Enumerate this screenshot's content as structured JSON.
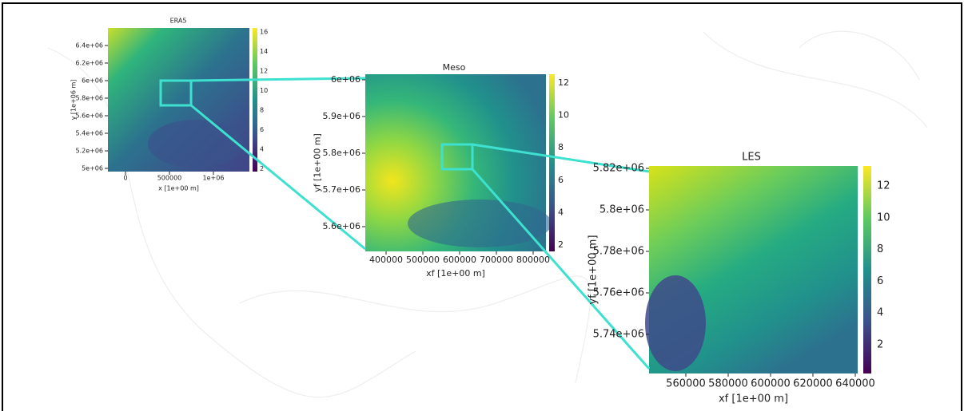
{
  "panels": [
    {
      "title": "ERA5",
      "xlabel": "x [1e+00 m]",
      "ylabel": "y [1e+06 m]",
      "xticks": [
        "0",
        "500000",
        "1e+06"
      ],
      "yticks": [
        "6.4e+06",
        "6.2e+06",
        "6e+06",
        "5.8e+06",
        "5.6e+06",
        "5.4e+06",
        "5.2e+06",
        "5e+06"
      ],
      "cbar_ticks": [
        "16",
        "14",
        "12",
        "10",
        "8",
        "6",
        "4",
        "2"
      ]
    },
    {
      "title": "Meso",
      "xlabel": "xf [1e+00 m]",
      "ylabel": "yf [1e+00 m]",
      "xticks": [
        "400000",
        "500000",
        "600000",
        "700000",
        "800000"
      ],
      "yticks": [
        "6e+06",
        "5.9e+06",
        "5.8e+06",
        "5.7e+06",
        "5.6e+06"
      ],
      "cbar_ticks": [
        "12",
        "10",
        "8",
        "6",
        "4",
        "2"
      ]
    },
    {
      "title": "LES",
      "xlabel": "xf [1e+00 m]",
      "ylabel": "yf [1e+00 m]",
      "xticks": [
        "560000",
        "580000",
        "600000",
        "620000",
        "640000"
      ],
      "yticks": [
        "5.82e+06",
        "5.8e+06",
        "5.78e+06",
        "5.76e+06",
        "5.74e+06"
      ],
      "cbar_ticks": [
        "12",
        "10",
        "8",
        "6",
        "4",
        "2"
      ]
    }
  ]
}
